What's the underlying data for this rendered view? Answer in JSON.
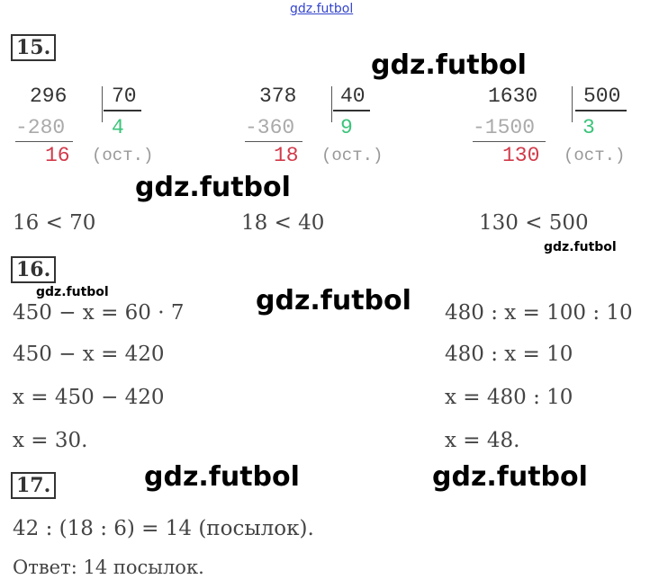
{
  "watermark": "gdz.futbol",
  "watermark_top": "gdz.futbol",
  "task15": {
    "number": "15",
    "divisions": [
      {
        "dividend": "296",
        "divisor": "70",
        "subtrahend": "-280",
        "quotient": "4",
        "remainder": "16",
        "note": "(ост.)",
        "compare": "16 < 70"
      },
      {
        "dividend": "378",
        "divisor": "40",
        "subtrahend": "-360",
        "quotient": "9",
        "remainder": "18",
        "note": "(ост.)",
        "compare": "18 < 40"
      },
      {
        "dividend": "1630",
        "divisor": "500",
        "subtrahend": "-1500",
        "quotient": "3",
        "remainder": "130",
        "note": "(ост.)",
        "compare": "130 < 500"
      }
    ]
  },
  "task16": {
    "number": "16",
    "left": [
      "450 − x = 60 · 7",
      "450 − x = 420",
      "x = 450 − 420",
      "x = 30."
    ],
    "right": [
      "480 : x = 100 : 10",
      "480 : x = 10",
      "x = 480 : 10",
      "x = 48."
    ]
  },
  "task17": {
    "number": "17",
    "lines": [
      "42 : (18 : 6) = 14 (посылок).",
      "Ответ: 14 посылок."
    ]
  }
}
